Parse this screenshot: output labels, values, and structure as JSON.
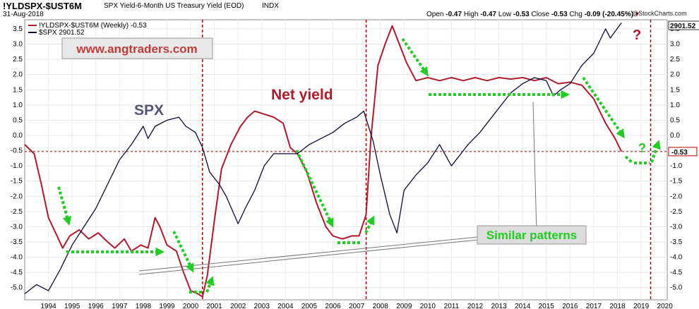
{
  "header": {
    "symbol": "!YLDSPX-$UST6M",
    "description": "SPX Yield-6-Month US Treasury Yield (EOD)",
    "exchange": "INDX",
    "date": "31-Aug-2018",
    "open_label": "Open",
    "open_value": "-0.47",
    "high_label": "High",
    "high_value": "-0.47",
    "low_label": "Low",
    "low_value": "-0.53",
    "close_label": "Close",
    "close_value": "-0.53",
    "chg_label": "Chg",
    "chg_value": "-0.09 (-20.45%)",
    "credit": "@StockCharts.com"
  },
  "colors": {
    "net_yield": "#b01a2a",
    "spx": "#0a0a3c",
    "arrow": "#22cc22",
    "ref_line": "#b00000",
    "watermark_text": "#c23b3b"
  },
  "annotations": {
    "watermark": "www.angtraders.com",
    "spx_label": "SPX",
    "net_yield_label": "Net yield",
    "similar_patterns": "Similar patterns",
    "question_mark": "?"
  },
  "chart_data": {
    "type": "line",
    "title": "SPX Yield-6-Month US Treasury Yield (EOD)",
    "legend": [
      {
        "label": "!YLDSPX-$UST6M (Weekly) -0.53",
        "color": "#b01a2a"
      },
      {
        "label": "$SPX 2901.52",
        "color": "#0a0a3c"
      }
    ],
    "legend_position": "top-left",
    "x_ticks": [
      "1994",
      "1995",
      "1996",
      "1997",
      "1998",
      "1999",
      "2000",
      "2001",
      "2002",
      "2003",
      "2004",
      "2005",
      "2006",
      "2007",
      "2008",
      "2009",
      "2010",
      "2011",
      "2012",
      "2013",
      "2014",
      "2015",
      "2016",
      "2017",
      "2018",
      "2019",
      "2020"
    ],
    "xlim": [
      1993.5,
      2020.6
    ],
    "y_ticks": [
      "3.5",
      "3.0",
      "2.5",
      "2.0",
      "1.5",
      "1.0",
      "0.5",
      "0.0",
      "-0.5",
      "-1.0",
      "-1.5",
      "-2.0",
      "-2.5",
      "-3.0",
      "-3.5",
      "-4.0",
      "-4.5",
      "-5.0"
    ],
    "ylim": [
      -5.4,
      3.8
    ],
    "last_value_tag": "-0.53",
    "spx_last_tag": "2901.52",
    "reference_line_y": -0.53,
    "vertical_markers": [
      2001.0,
      2007.9,
      2019.9
    ],
    "series": [
      {
        "name": "!YLDSPX-$UST6M (Weekly)",
        "x": [
          1993.5,
          1993.9,
          1994.2,
          1994.5,
          1994.8,
          1995.1,
          1995.4,
          1995.8,
          1996.2,
          1996.6,
          1997.0,
          1997.3,
          1997.7,
          1998.0,
          1998.4,
          1998.7,
          1999.0,
          1999.2,
          1999.5,
          1999.9,
          2000.2,
          2000.5,
          2000.8,
          2001.0,
          2001.2,
          2001.5,
          2001.8,
          2002.2,
          2002.6,
          2002.9,
          2003.2,
          2003.6,
          2004.0,
          2004.4,
          2004.7,
          2005.0,
          2005.4,
          2005.8,
          2006.2,
          2006.5,
          2006.9,
          2007.3,
          2007.6,
          2007.9,
          2008.1,
          2008.4,
          2008.7,
          2009.0,
          2009.2,
          2009.6,
          2010.0,
          2010.5,
          2011.0,
          2011.5,
          2012.0,
          2012.5,
          2013.0,
          2013.5,
          2014.0,
          2014.5,
          2015.0,
          2015.5,
          2016.0,
          2016.5,
          2017.0,
          2017.5,
          2018.0,
          2018.4,
          2018.67
        ],
        "values": [
          -0.3,
          -0.6,
          -1.6,
          -2.7,
          -3.2,
          -3.7,
          -3.3,
          -3.1,
          -3.4,
          -3.2,
          -3.5,
          -3.7,
          -3.4,
          -3.8,
          -3.6,
          -3.7,
          -2.7,
          -3.0,
          -3.6,
          -3.8,
          -4.5,
          -5.1,
          -5.2,
          -5.3,
          -4.6,
          -2.8,
          -1.1,
          -0.3,
          0.3,
          0.6,
          0.8,
          0.7,
          0.6,
          0.4,
          -0.4,
          -0.6,
          -1.2,
          -2.2,
          -3.0,
          -3.3,
          -3.4,
          -3.3,
          -3.3,
          -2.6,
          -0.1,
          2.3,
          3.0,
          3.6,
          3.2,
          2.4,
          1.8,
          1.9,
          1.8,
          1.9,
          1.8,
          1.9,
          1.8,
          1.9,
          1.85,
          1.9,
          1.8,
          1.9,
          1.7,
          1.75,
          1.65,
          1.2,
          0.4,
          -0.1,
          -0.53
        ]
      },
      {
        "name": "$SPX",
        "x": [
          1993.5,
          1994.0,
          1994.5,
          1995.0,
          1995.5,
          1996.0,
          1996.5,
          1997.0,
          1997.5,
          1998.0,
          1998.5,
          1998.7,
          1999.0,
          1999.5,
          2000.0,
          2000.3,
          2000.7,
          2001.0,
          2001.3,
          2001.7,
          2002.0,
          2002.5,
          2002.8,
          2003.2,
          2003.6,
          2004.0,
          2004.5,
          2005.0,
          2005.5,
          2006.0,
          2006.5,
          2007.0,
          2007.5,
          2007.8,
          2008.2,
          2008.5,
          2008.9,
          2009.2,
          2009.5,
          2010.0,
          2010.5,
          2011.0,
          2011.5,
          2011.8,
          2012.2,
          2012.7,
          2013.0,
          2013.5,
          2014.0,
          2014.5,
          2015.0,
          2015.5,
          2015.8,
          2016.1,
          2016.5,
          2017.0,
          2017.5,
          2018.0,
          2018.2,
          2018.67
        ],
        "values": [
          -5.2,
          -4.9,
          -5.1,
          -4.4,
          -3.6,
          -3.0,
          -2.4,
          -1.6,
          -0.8,
          -0.3,
          0.3,
          -0.1,
          0.3,
          0.5,
          0.6,
          0.3,
          0.1,
          -0.4,
          -1.2,
          -1.6,
          -2.0,
          -2.9,
          -2.4,
          -1.8,
          -1.0,
          -0.6,
          -0.6,
          -0.6,
          -0.3,
          -0.1,
          0.1,
          0.4,
          0.6,
          0.8,
          -0.2,
          -1.3,
          -2.6,
          -3.2,
          -1.8,
          -1.3,
          -0.9,
          -0.3,
          -1.0,
          -0.7,
          -0.3,
          0.1,
          0.4,
          0.9,
          1.4,
          1.7,
          1.9,
          1.8,
          1.3,
          1.5,
          1.7,
          2.3,
          2.7,
          3.5,
          3.2,
          3.7
        ]
      }
    ]
  }
}
